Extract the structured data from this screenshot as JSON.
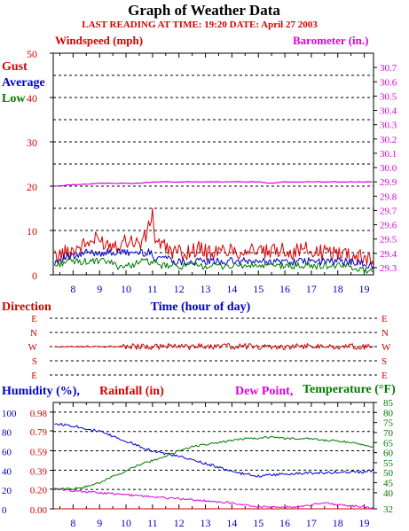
{
  "colors": {
    "red": "#d60000",
    "blue": "#0000cc",
    "green": "#007a00",
    "magenta": "#dd00dd",
    "grid": "#000000"
  },
  "chart_data": [
    {
      "type": "line",
      "title": "Graph of Weather Data",
      "subtitle": "LAST READING AT TIME: 19:20  DATE: April 27 2003",
      "left_axis_title": "Windspeed (mph)",
      "right_axis_title": "Barometer (in.)",
      "ylim_left": [
        0,
        50
      ],
      "yticks_left": [
        "0",
        "10",
        "20",
        "30",
        "40",
        "50"
      ],
      "ylim_right": [
        29.25,
        30.8
      ],
      "yticks_right": [
        "29.3",
        "29.4",
        "29.5",
        "29.6",
        "29.7",
        "29.8",
        "29.9",
        "30.0",
        "30.1",
        "30.2",
        "30.3",
        "30.4",
        "30.5",
        "30.6",
        "30.7"
      ],
      "xticks": [
        "8",
        "9",
        "10",
        "11",
        "12",
        "13",
        "14",
        "15",
        "16",
        "17",
        "18",
        "19"
      ],
      "xlabel": "Time (hour of day)",
      "x_range_hours": [
        7.25,
        19.35
      ],
      "grid": "horizontal-dashed",
      "legend": [
        "Gust",
        "Average",
        "Low"
      ],
      "series": [
        {
          "name": "Gust",
          "color": "red",
          "x": [
            7.3,
            7.7,
            8.1,
            8.5,
            8.9,
            9.3,
            9.7,
            10.1,
            10.5,
            10.8,
            10.9,
            11.0,
            11.1,
            11.5,
            11.9,
            12.3,
            12.7,
            13.1,
            13.5,
            13.9,
            14.3,
            14.7,
            15.1,
            15.5,
            15.9,
            16.3,
            16.7,
            17.1,
            17.5,
            17.9,
            18.3,
            18.7,
            19.1,
            19.35
          ],
          "values": [
            4,
            5,
            6,
            7,
            8,
            7,
            7,
            8,
            7,
            9,
            12,
            14,
            8,
            6,
            5,
            5,
            6,
            5,
            5,
            6,
            5,
            6,
            5,
            5,
            6,
            5,
            6,
            5,
            5,
            5,
            5,
            4,
            4,
            3
          ]
        },
        {
          "name": "Average",
          "color": "blue",
          "x": [
            7.3,
            7.7,
            8.1,
            8.5,
            8.9,
            9.3,
            9.7,
            10.1,
            10.5,
            10.9,
            11.1,
            11.5,
            11.9,
            12.3,
            12.7,
            13.1,
            13.5,
            13.9,
            14.3,
            14.7,
            15.1,
            15.5,
            15.9,
            16.3,
            16.7,
            17.1,
            17.5,
            17.9,
            18.3,
            18.7,
            19.1,
            19.35
          ],
          "values": [
            3,
            4,
            4,
            5,
            5,
            5,
            5,
            5,
            5,
            5,
            4,
            4,
            3,
            3,
            3,
            3,
            3,
            3,
            3,
            3,
            3,
            3,
            3,
            3,
            3,
            3,
            3,
            3,
            3,
            3,
            2,
            2
          ]
        },
        {
          "name": "Low",
          "color": "green",
          "x": [
            7.3,
            7.7,
            8.1,
            8.5,
            8.9,
            9.3,
            9.7,
            10.1,
            10.5,
            10.9,
            11.3,
            11.7,
            12.1,
            12.5,
            12.9,
            13.3,
            13.7,
            14.1,
            14.5,
            14.9,
            15.3,
            15.7,
            16.1,
            16.5,
            16.9,
            17.3,
            17.7,
            18.1,
            18.5,
            18.9,
            19.35
          ],
          "values": [
            2,
            3,
            3,
            3,
            3,
            3,
            2,
            2,
            3,
            3,
            2,
            2,
            2,
            2,
            2,
            2,
            2,
            2,
            2,
            2,
            2,
            2,
            2,
            2,
            2,
            2,
            2,
            2,
            2,
            1,
            1
          ]
        },
        {
          "name": "Barometer",
          "color": "magenta",
          "axis": "right",
          "x": [
            7.3,
            8.0,
            9.0,
            10.0,
            10.5,
            11.0,
            11.5,
            12.0,
            13.0,
            14.0,
            14.5,
            15.0,
            15.5,
            16.0,
            17.0,
            18.0,
            18.5,
            19.0,
            19.35
          ],
          "values": [
            29.87,
            29.88,
            29.89,
            29.89,
            29.89,
            29.9,
            29.9,
            29.9,
            29.9,
            29.9,
            29.9,
            29.9,
            29.89,
            29.9,
            29.9,
            29.9,
            29.9,
            29.9,
            29.9
          ]
        }
      ]
    },
    {
      "type": "line",
      "title": "Direction",
      "yticks": [
        "E",
        "N",
        "W",
        "S",
        "E"
      ],
      "series": [
        {
          "name": "Direction",
          "color": "red",
          "x": [
            7.3,
            8.5,
            9.5,
            10.0,
            10.5,
            11.0,
            11.5,
            12.0,
            12.5,
            13.0,
            13.5,
            14.0,
            14.5,
            15.0,
            15.5,
            16.0,
            16.5,
            17.0,
            17.5,
            18.0,
            18.5,
            19.0,
            19.35
          ],
          "values": [
            "W",
            "W",
            "W",
            "W",
            "W",
            "W",
            "W",
            "W",
            "W",
            "W",
            "W",
            "W",
            "W",
            "W",
            "W",
            "W",
            "W",
            "W",
            "W",
            "W",
            "W",
            "W",
            "W"
          ]
        }
      ]
    },
    {
      "type": "line",
      "humidity_title": "Humidity (%),",
      "rainfall_title": "Rainfall (in)",
      "dewpoint_title": "Dew Point,",
      "temperature_title": "Temperature (°F)",
      "humidity_ticks": [
        "0",
        "20",
        "40",
        "60",
        "80",
        "100"
      ],
      "rainfall_ticks": [
        "0.00",
        "0.20",
        "0.39",
        "0.59",
        "0.79",
        "0.98"
      ],
      "temperature_ticks": [
        "32",
        "40",
        "45",
        "50",
        "55",
        "60",
        "65",
        "70",
        "75",
        "80",
        "85"
      ],
      "xticks": [
        "8",
        "9",
        "10",
        "11",
        "12",
        "13",
        "14",
        "15",
        "16",
        "17",
        "18",
        "19"
      ],
      "series": [
        {
          "name": "Humidity",
          "color": "blue",
          "axis": "humidity",
          "x": [
            7.3,
            8.0,
            9.0,
            10.0,
            11.0,
            12.0,
            13.0,
            13.5,
            14.0,
            14.5,
            15.0,
            15.5,
            16.0,
            17.0,
            18.0,
            19.0,
            19.35
          ],
          "values": [
            88,
            86,
            80,
            70,
            60,
            54,
            47,
            43,
            38,
            36,
            34,
            35,
            36,
            37,
            38,
            38,
            40
          ]
        },
        {
          "name": "Rainfall",
          "color": "red",
          "axis": "rainfall",
          "x": [
            7.3,
            19.35
          ],
          "values": [
            0.0,
            0.0
          ]
        },
        {
          "name": "Dew Point",
          "color": "magenta",
          "axis": "temperature",
          "x": [
            7.3,
            8.0,
            9.0,
            10.0,
            11.0,
            12.0,
            13.0,
            14.0,
            14.5,
            15.0,
            15.5,
            16.0,
            16.5,
            17.0,
            17.5,
            18.0,
            19.0,
            19.35
          ],
          "values": [
            42,
            41,
            40,
            39,
            38,
            37,
            36,
            35,
            34,
            33,
            33,
            33,
            33,
            34,
            35,
            34,
            33,
            32
          ]
        },
        {
          "name": "Temperature",
          "color": "green",
          "axis": "temperature",
          "x": [
            7.3,
            8.0,
            8.5,
            9.0,
            9.5,
            10.0,
            10.5,
            11.0,
            11.5,
            12.0,
            12.5,
            13.0,
            13.5,
            14.0,
            14.5,
            15.0,
            15.5,
            16.0,
            16.5,
            17.0,
            17.5,
            18.0,
            18.5,
            19.0,
            19.35
          ],
          "values": [
            42,
            42,
            43,
            45,
            48,
            51,
            54,
            56,
            58,
            61,
            63,
            64,
            65,
            66,
            67,
            67,
            68,
            67,
            67,
            67,
            66,
            66,
            65,
            64,
            63
          ]
        }
      ]
    }
  ]
}
